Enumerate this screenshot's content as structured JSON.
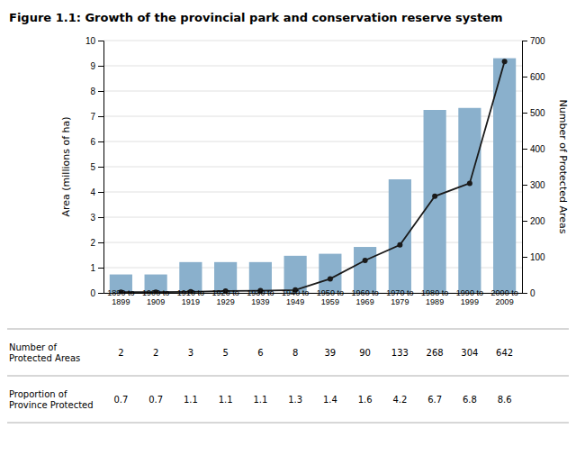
{
  "chart_data": {
    "type": "bar",
    "title": "Figure 1.1: Growth of the provincial park and conservation reserve system",
    "categories": [
      "1890 to\n1899",
      "1900 to\n1909",
      "1910 to\n1919",
      "1920 to\n1929",
      "1930 to\n1939",
      "1940 to\n1949",
      "1950 to\n1959",
      "1960 to\n1969",
      "1970 to\n1979",
      "1980 to\n1989",
      "1990 to\n1999",
      "2000 to\n2009"
    ],
    "series": [
      {
        "type": "bar",
        "color": "#8ab0cc",
        "values": [
          0.73,
          0.73,
          1.22,
          1.22,
          1.22,
          1.47,
          1.55,
          1.82,
          4.5,
          7.25,
          7.33,
          9.3
        ]
      },
      {
        "type": "line",
        "axis": "y2",
        "color": "#1a1a1a",
        "marker": "circle",
        "values": [
          2,
          2,
          3,
          5,
          6,
          8,
          39,
          90,
          133,
          268,
          304,
          642
        ]
      }
    ],
    "ylabel": "Area (millions of ha)",
    "y2label": "Number of Protected Areas",
    "ylim": [
      0,
      10
    ],
    "yticks": [
      0,
      1,
      2,
      3,
      4,
      5,
      6,
      7,
      8,
      9,
      10
    ],
    "y2lim": [
      0,
      700
    ],
    "y2ticks": [
      0,
      100,
      200,
      300,
      400,
      500,
      600,
      700
    ],
    "grid": true,
    "table": {
      "rows": [
        {
          "label": "Number of\nProtected Areas",
          "values": [
            2,
            2,
            3,
            5,
            6,
            8,
            39,
            90,
            133,
            268,
            304,
            642
          ]
        },
        {
          "label": "Proportion of\nProvince Protected",
          "values": [
            0.7,
            0.7,
            1.1,
            1.1,
            1.1,
            1.3,
            1.4,
            1.6,
            4.2,
            6.7,
            6.8,
            8.6
          ]
        }
      ]
    }
  }
}
